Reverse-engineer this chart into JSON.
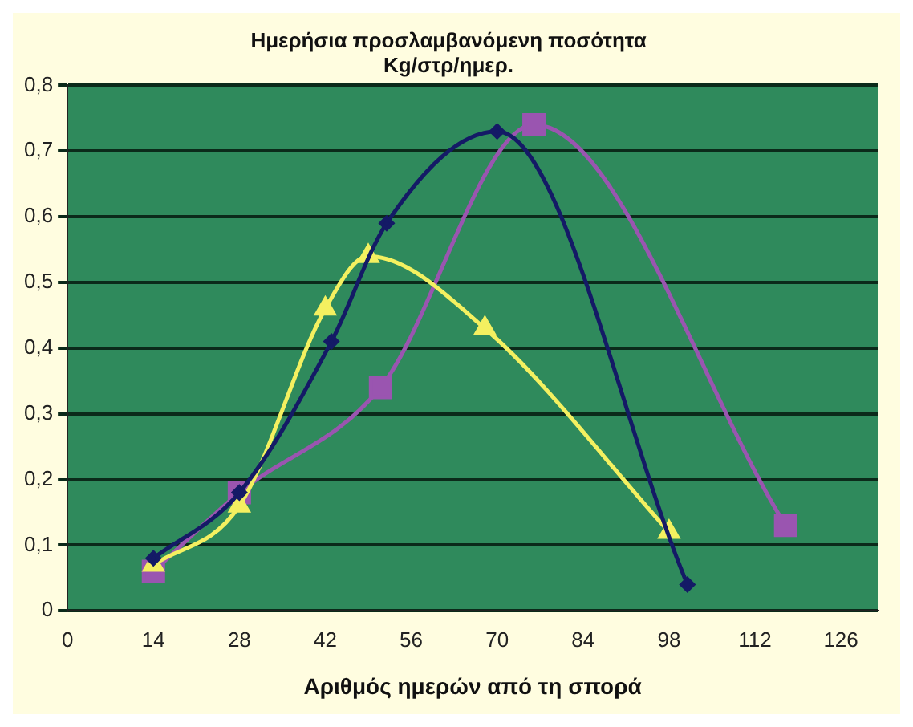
{
  "chart_data": {
    "type": "line",
    "title": [
      "Ημερήσια προσλαμβανόμενη ποσότητα",
      "Kg/στρ/ημερ."
    ],
    "xlabel": "Αριθμός ημερών από τη σπορά",
    "xlim": [
      0,
      132
    ],
    "xticks": [
      0,
      14,
      28,
      42,
      56,
      70,
      84,
      98,
      112,
      126
    ],
    "ylim": [
      0,
      0.8
    ],
    "yticks": [
      {
        "value": 0,
        "label": "0"
      },
      {
        "value": 0.1,
        "label": "0,1"
      },
      {
        "value": 0.2,
        "label": "0,2"
      },
      {
        "value": 0.3,
        "label": "0,3"
      },
      {
        "value": 0.4,
        "label": "0,4"
      },
      {
        "value": 0.5,
        "label": "0,5"
      },
      {
        "value": 0.6,
        "label": "0,6"
      },
      {
        "value": 0.7,
        "label": "0,7"
      },
      {
        "value": 0.8,
        "label": "0,8"
      }
    ],
    "grid": "y",
    "legend": false,
    "series": [
      {
        "color": "#141a66",
        "marker": "diamond",
        "x": [
          14,
          28,
          43,
          52,
          70,
          101
        ],
        "values": [
          0.08,
          0.18,
          0.41,
          0.59,
          0.73,
          0.04
        ]
      },
      {
        "color": "#f4f060",
        "marker": "triangle",
        "x": [
          14,
          28,
          42,
          49,
          68,
          98
        ],
        "values": [
          0.07,
          0.16,
          0.46,
          0.54,
          0.43,
          0.12
        ]
      },
      {
        "color": "#9a55b0",
        "marker": "square",
        "x": [
          14,
          28,
          51,
          76,
          117
        ],
        "values": [
          0.06,
          0.18,
          0.34,
          0.74,
          0.13
        ]
      }
    ]
  }
}
